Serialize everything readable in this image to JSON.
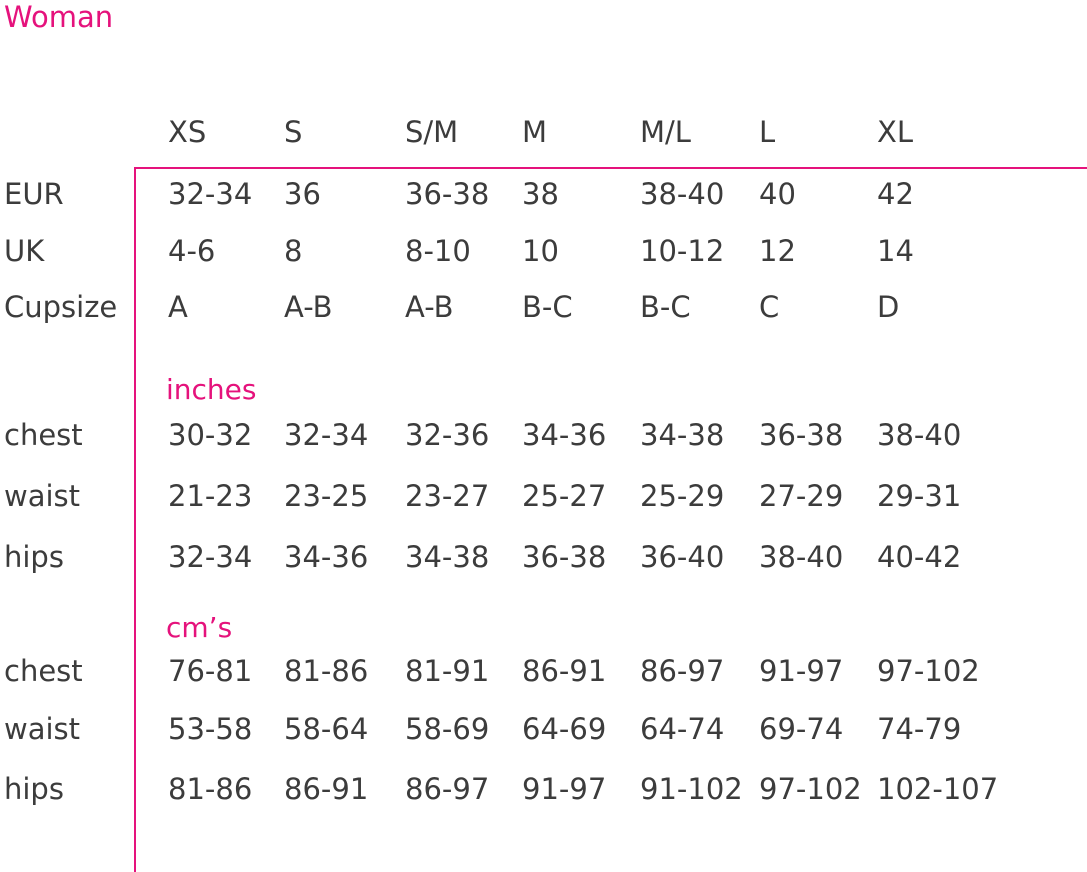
{
  "title": "Woman",
  "sizes": [
    "XS",
    "S",
    "S/M",
    "M",
    "M/L",
    "L",
    "XL"
  ],
  "conversion_rows": [
    {
      "label": "EUR",
      "values": [
        "32-34",
        "36",
        "36-38",
        "38",
        "38-40",
        "40",
        "42"
      ]
    },
    {
      "label": "UK",
      "values": [
        "4-6",
        "8",
        "8-10",
        "10",
        "10-12",
        "12",
        "14"
      ]
    },
    {
      "label": "Cupsize",
      "values": [
        "A",
        "A-B",
        "A-B",
        "B-C",
        "B-C",
        "C",
        "D"
      ]
    }
  ],
  "inches": {
    "heading": "inches",
    "rows": [
      {
        "label": "chest",
        "values": [
          "30-32",
          "32-34",
          "32-36",
          "34-36",
          "34-38",
          "36-38",
          "38-40"
        ]
      },
      {
        "label": "waist",
        "values": [
          "21-23",
          "23-25",
          "23-27",
          "25-27",
          "25-29",
          "27-29",
          "29-31"
        ]
      },
      {
        "label": "hips",
        "values": [
          "32-34",
          "34-36",
          "34-38",
          "36-38",
          "36-40",
          "38-40",
          "40-42"
        ]
      }
    ]
  },
  "cms": {
    "heading": "cm’s",
    "rows": [
      {
        "label": "chest",
        "values": [
          "76-81",
          "81-86",
          "81-91",
          "86-91",
          "86-97",
          "91-97",
          "97-102"
        ]
      },
      {
        "label": "waist",
        "values": [
          "53-58",
          "58-64",
          "58-69",
          "64-69",
          "64-74",
          "69-74",
          "74-79"
        ]
      },
      {
        "label": "hips",
        "values": [
          "81-86",
          "86-91",
          "86-97",
          "91-97",
          "91-102",
          "97-102",
          "102-107"
        ]
      }
    ]
  },
  "colors": {
    "accent": "#e5127c",
    "text": "#3c3c3c"
  }
}
